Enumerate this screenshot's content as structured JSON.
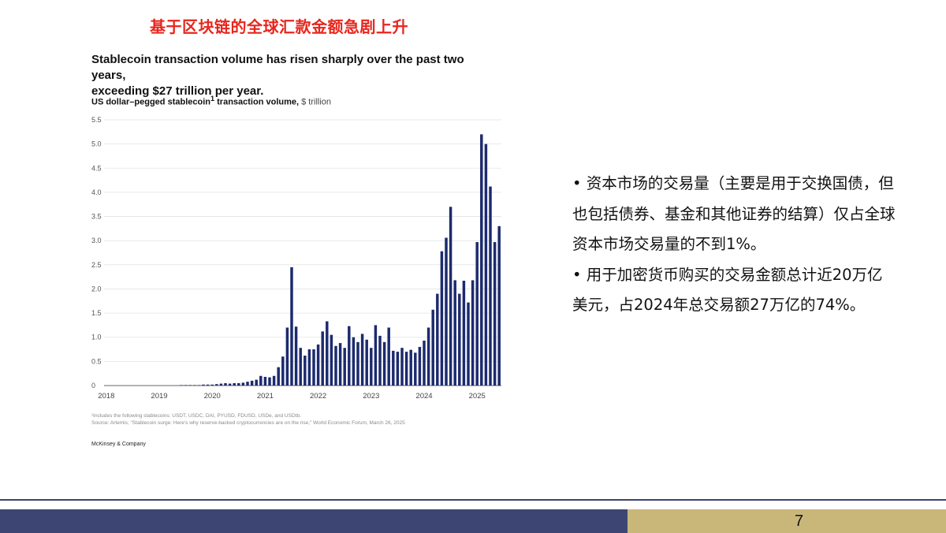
{
  "slide": {
    "title": "基于区块链的全球汇款金额急剧上升",
    "page_number": "7"
  },
  "chart_text": {
    "heading_line1": "Stablecoin transaction volume has risen sharply over the past two years,",
    "heading_line2": "exceeding $27 trillion per year.",
    "subtitle_main": "US dollar–pegged stablecoin",
    "subtitle_sup": "1",
    "subtitle_rest": " transaction volume,",
    "subtitle_unit": " $ trillion",
    "footnote_line1": "¹Includes the following stablecoins: USDT, USDC, DAI, PYUSD, FDUSD, USDe, and USDtb.",
    "footnote_line2": "Source: Artemis; \"Stablecoin surge: Here's why reserve-backed cryptocurrencies are on the rise,\" World Economic Forum, March 26, 2025",
    "brand": "McKinsey & Company"
  },
  "chart_data": {
    "type": "bar",
    "title": "Stablecoin transaction volume has risen sharply over the past two years, exceeding $27 trillion per year.",
    "ylabel": "US dollar–pegged stablecoin transaction volume, $ trillion",
    "xlabel": "",
    "ylim": [
      0,
      5.5
    ],
    "yticks": [
      "0",
      "0.5",
      "1.0",
      "1.5",
      "2.0",
      "2.5",
      "3.0",
      "3.5",
      "4.0",
      "4.5",
      "5.0",
      "5.5"
    ],
    "xticks": [
      "2018",
      "2019",
      "2020",
      "2021",
      "2022",
      "2023",
      "2024",
      "2025"
    ],
    "grid": true,
    "bar_color": "#1c2a6e",
    "frequency": "monthly",
    "start": "2018-01",
    "values": [
      0.0,
      0.0,
      0.0,
      0.0,
      0.0,
      0.0,
      0.0,
      0.0,
      0.0,
      0.0,
      0.0,
      0.0,
      0.0,
      0.0,
      0.0,
      0.0,
      0.0,
      0.01,
      0.01,
      0.01,
      0.01,
      0.01,
      0.02,
      0.02,
      0.02,
      0.03,
      0.04,
      0.05,
      0.04,
      0.05,
      0.05,
      0.06,
      0.08,
      0.1,
      0.12,
      0.2,
      0.18,
      0.17,
      0.2,
      0.38,
      0.6,
      1.2,
      2.45,
      1.22,
      0.78,
      0.62,
      0.75,
      0.75,
      0.85,
      1.12,
      1.33,
      1.05,
      0.82,
      0.88,
      0.78,
      1.23,
      1.0,
      0.9,
      1.07,
      0.95,
      0.78,
      1.25,
      1.03,
      0.9,
      1.2,
      0.72,
      0.7,
      0.78,
      0.7,
      0.74,
      0.68,
      0.8,
      0.93,
      1.2,
      1.57,
      1.9,
      2.78,
      3.06,
      3.7,
      2.18,
      1.9,
      2.17,
      1.72,
      2.18,
      2.97,
      5.2,
      5.0,
      4.12,
      2.97,
      3.3
    ]
  },
  "bullets": [
    "• 资本市场的交易量（主要是用于交换国债，但也包括债券、基金和其他证券的结算）仅占全球资本市场交易量的不到1%。",
    "• 用于加密货币购买的交易金额总计近20万亿美元，占2024年总交易额27万亿的74%。"
  ],
  "colors": {
    "title_red": "#e8251c",
    "footer_navy": "#3d4673",
    "footer_gold": "#c9b77a"
  }
}
